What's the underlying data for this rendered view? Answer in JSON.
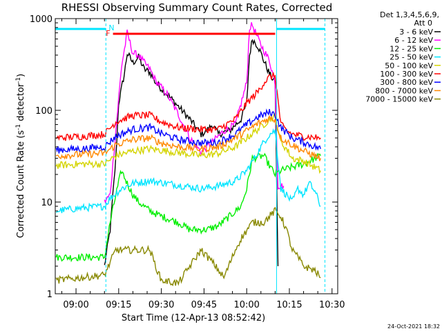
{
  "chart_data": {
    "type": "line",
    "title": "RHESSI Observing Summary Count Rates, Corrected",
    "xlabel": "Start Time (12-Apr-13 08:52:42)",
    "ylabel_main": "Corrected Count Rate (s",
    "ylabel_exp1": "-1",
    "ylabel_mid": " detector",
    "ylabel_exp2": "-1",
    "ylabel_end": ")",
    "timestamp": "24-Oct-2021 18:32",
    "y_scale": "log",
    "ylim": [
      1,
      1000
    ],
    "xlim": [
      52.7,
      152
    ],
    "x_ticks": [
      {
        "label": "09:00",
        "value": 60
      },
      {
        "label": "09:15",
        "value": 75
      },
      {
        "label": "09:30",
        "value": 90
      },
      {
        "label": "09:45",
        "value": 105
      },
      {
        "label": "10:00",
        "value": 120
      },
      {
        "label": "10:15",
        "value": 135
      },
      {
        "label": "10:30",
        "value": 150
      }
    ],
    "y_ticks": [
      {
        "label": "1",
        "value": 1
      },
      {
        "label": "10",
        "value": 10
      },
      {
        "label": "100",
        "value": 100
      },
      {
        "label": "1000",
        "value": 1000
      }
    ],
    "legend_placement": "right",
    "legend_header": [
      "Det 1,3,4,5,6,9,",
      "Att 0"
    ],
    "flags": {
      "night_boundaries": [
        70.5,
        130.5,
        147.5
      ],
      "n_label": "N",
      "f_label": "F",
      "flare_range": [
        73,
        130
      ]
    },
    "series": [
      {
        "name": "3 - 6 keV",
        "color": "#000000",
        "points": [
          [
            70,
            2
          ],
          [
            72,
            5
          ],
          [
            74,
            30
          ],
          [
            75,
            120
          ],
          [
            77,
            250
          ],
          [
            78,
            420
          ],
          [
            80,
            330
          ],
          [
            82,
            380
          ],
          [
            84,
            280
          ],
          [
            86,
            260
          ],
          [
            88,
            200
          ],
          [
            92,
            150
          ],
          [
            96,
            110
          ],
          [
            100,
            80
          ],
          [
            104,
            55
          ],
          [
            106,
            60
          ],
          [
            108,
            70
          ],
          [
            110,
            55
          ],
          [
            114,
            60
          ],
          [
            118,
            80
          ],
          [
            120,
            120
          ],
          [
            121,
            400
          ],
          [
            122,
            600
          ],
          [
            124,
            500
          ],
          [
            126,
            350
          ],
          [
            128,
            250
          ],
          [
            130,
            200
          ],
          [
            131,
            2
          ]
        ]
      },
      {
        "name": "6 - 12 keV",
        "color": "#ff00ff",
        "points": [
          [
            70,
            10
          ],
          [
            72,
            12
          ],
          [
            74,
            60
          ],
          [
            76,
            300
          ],
          [
            78,
            700
          ],
          [
            80,
            420
          ],
          [
            82,
            400
          ],
          [
            84,
            330
          ],
          [
            86,
            280
          ],
          [
            88,
            210
          ],
          [
            92,
            150
          ],
          [
            96,
            90
          ],
          [
            100,
            50
          ],
          [
            104,
            35
          ],
          [
            106,
            40
          ],
          [
            108,
            45
          ],
          [
            112,
            60
          ],
          [
            116,
            70
          ],
          [
            120,
            200
          ],
          [
            121,
            800
          ],
          [
            122,
            850
          ],
          [
            124,
            600
          ],
          [
            126,
            450
          ],
          [
            128,
            350
          ],
          [
            130,
            200
          ],
          [
            131,
            15
          ],
          [
            133,
            15
          ]
        ]
      },
      {
        "name": "12 - 25 keV",
        "color": "#00ee00",
        "points": [
          [
            53,
            2.5
          ],
          [
            70,
            2.5
          ],
          [
            72,
            6
          ],
          [
            74,
            12
          ],
          [
            76,
            22
          ],
          [
            78,
            16
          ],
          [
            80,
            12
          ],
          [
            82,
            10
          ],
          [
            86,
            8
          ],
          [
            90,
            7
          ],
          [
            96,
            6
          ],
          [
            100,
            5
          ],
          [
            106,
            5
          ],
          [
            110,
            5.5
          ],
          [
            114,
            7
          ],
          [
            118,
            9
          ],
          [
            120,
            14
          ],
          [
            122,
            30
          ],
          [
            126,
            32
          ],
          [
            128,
            25
          ],
          [
            130,
            20
          ],
          [
            132,
            22
          ],
          [
            136,
            24
          ],
          [
            140,
            26
          ],
          [
            144,
            30
          ],
          [
            146,
            32
          ]
        ]
      },
      {
        "name": "25 - 50 keV",
        "color": "#00e5ff",
        "points": [
          [
            53,
            8
          ],
          [
            60,
            8.5
          ],
          [
            70,
            9
          ],
          [
            72,
            11
          ],
          [
            76,
            14
          ],
          [
            80,
            16
          ],
          [
            86,
            17
          ],
          [
            92,
            16
          ],
          [
            98,
            15
          ],
          [
            104,
            14
          ],
          [
            110,
            15
          ],
          [
            116,
            17
          ],
          [
            120,
            22
          ],
          [
            124,
            35
          ],
          [
            126,
            45
          ],
          [
            128,
            55
          ],
          [
            130,
            60
          ],
          [
            132,
            14
          ],
          [
            134,
            12
          ],
          [
            136,
            10
          ],
          [
            138,
            14
          ],
          [
            140,
            12
          ],
          [
            142,
            16
          ],
          [
            144,
            13
          ],
          [
            146,
            9
          ]
        ]
      },
      {
        "name": "50 - 100 keV",
        "color": "#d4d400",
        "points": [
          [
            53,
            25
          ],
          [
            62,
            26
          ],
          [
            70,
            26
          ],
          [
            74,
            32
          ],
          [
            80,
            36
          ],
          [
            86,
            38
          ],
          [
            92,
            36
          ],
          [
            98,
            34
          ],
          [
            104,
            32
          ],
          [
            110,
            34
          ],
          [
            116,
            40
          ],
          [
            120,
            50
          ],
          [
            126,
            70
          ],
          [
            128,
            80
          ],
          [
            130,
            85
          ],
          [
            132,
            45
          ],
          [
            134,
            38
          ],
          [
            136,
            30
          ],
          [
            140,
            28
          ],
          [
            146,
            22
          ]
        ]
      },
      {
        "name": "100 - 300 keV",
        "color": "#ff0000",
        "points": [
          [
            53,
            50
          ],
          [
            62,
            52
          ],
          [
            70,
            55
          ],
          [
            74,
            75
          ],
          [
            80,
            88
          ],
          [
            86,
            88
          ],
          [
            90,
            75
          ],
          [
            96,
            65
          ],
          [
            104,
            62
          ],
          [
            110,
            62
          ],
          [
            116,
            80
          ],
          [
            120,
            120
          ],
          [
            124,
            160
          ],
          [
            126,
            200
          ],
          [
            128,
            230
          ],
          [
            130,
            240
          ],
          [
            132,
            70
          ],
          [
            134,
            60
          ],
          [
            136,
            55
          ],
          [
            140,
            52
          ],
          [
            146,
            50
          ]
        ]
      },
      {
        "name": "300 - 800 keV",
        "color": "#0000ff",
        "points": [
          [
            53,
            37
          ],
          [
            62,
            38
          ],
          [
            70,
            40
          ],
          [
            74,
            52
          ],
          [
            80,
            62
          ],
          [
            86,
            65
          ],
          [
            90,
            56
          ],
          [
            96,
            48
          ],
          [
            104,
            44
          ],
          [
            110,
            45
          ],
          [
            116,
            55
          ],
          [
            120,
            70
          ],
          [
            124,
            85
          ],
          [
            128,
            95
          ],
          [
            130,
            90
          ],
          [
            132,
            65
          ],
          [
            136,
            50
          ],
          [
            140,
            45
          ],
          [
            146,
            38
          ]
        ]
      },
      {
        "name": "800 - 7000 keV",
        "color": "#ff8800",
        "points": [
          [
            53,
            32
          ],
          [
            62,
            33
          ],
          [
            70,
            34
          ],
          [
            74,
            42
          ],
          [
            80,
            48
          ],
          [
            86,
            50
          ],
          [
            90,
            44
          ],
          [
            96,
            40
          ],
          [
            104,
            38
          ],
          [
            110,
            40
          ],
          [
            116,
            50
          ],
          [
            120,
            60
          ],
          [
            124,
            72
          ],
          [
            128,
            82
          ],
          [
            130,
            80
          ],
          [
            132,
            50
          ],
          [
            136,
            42
          ],
          [
            140,
            36
          ],
          [
            146,
            30
          ]
        ]
      },
      {
        "name": "7000 - 15000 keV",
        "color": "#888800",
        "points": [
          [
            53,
            1.4
          ],
          [
            62,
            1.5
          ],
          [
            70,
            1.6
          ],
          [
            72,
            2.2
          ],
          [
            74,
            3
          ],
          [
            80,
            3
          ],
          [
            86,
            3
          ],
          [
            88,
            2
          ],
          [
            90,
            1.4
          ],
          [
            96,
            1.3
          ],
          [
            100,
            2
          ],
          [
            104,
            3
          ],
          [
            108,
            2.2
          ],
          [
            112,
            1.5
          ],
          [
            116,
            3
          ],
          [
            118,
            4
          ],
          [
            122,
            6
          ],
          [
            126,
            6
          ],
          [
            128,
            7
          ],
          [
            130,
            8
          ],
          [
            132,
            7
          ],
          [
            134,
            5
          ],
          [
            136,
            3
          ],
          [
            138,
            2.5
          ],
          [
            140,
            2
          ],
          [
            144,
            1.8
          ],
          [
            146,
            1.5
          ]
        ]
      }
    ]
  }
}
